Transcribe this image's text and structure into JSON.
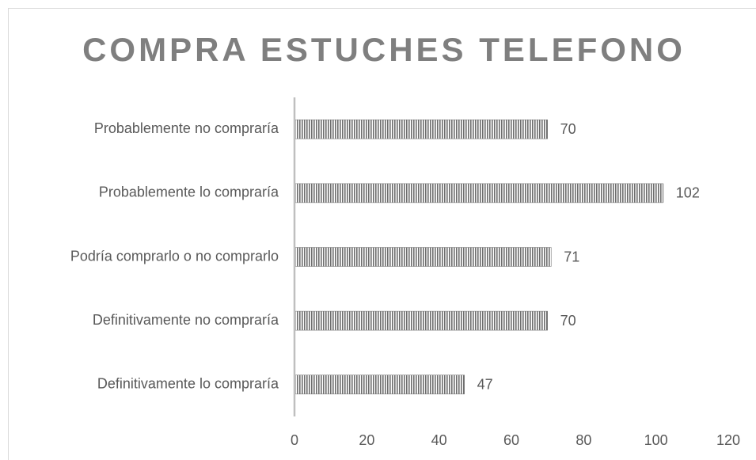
{
  "chart_data": {
    "type": "bar",
    "orientation": "horizontal",
    "title": "COMPRA ESTUCHES TELEFONO",
    "categories": [
      "Probablemente no compraría",
      "Probablemente lo compraría",
      "Podría comprarlo o no comprarlo",
      "Definitivamente no compraría",
      "Definitivamente lo compraría"
    ],
    "values": [
      70,
      102,
      71,
      70,
      47
    ],
    "color": "#6e6e6e",
    "xlim": [
      0,
      120
    ],
    "xticks": [
      0,
      20,
      40,
      60,
      80,
      100,
      120
    ],
    "grid": false
  }
}
